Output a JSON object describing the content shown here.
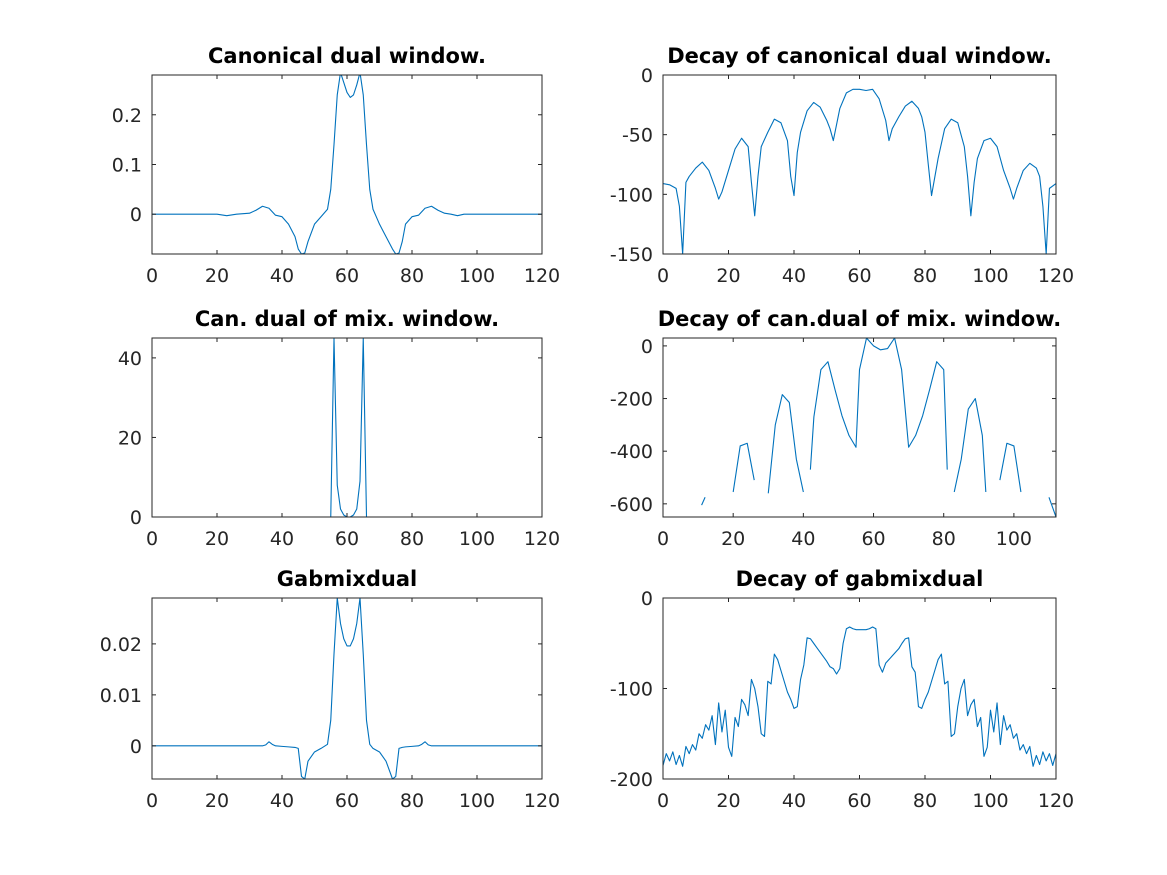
{
  "figure": {
    "background": "#ffffff",
    "line_color": "#0072bd",
    "axis_color": "#262626"
  },
  "chart_data": [
    {
      "type": "line",
      "title": "Canonical dual window.",
      "xlabel": "",
      "ylabel": "",
      "xlim": [
        0,
        120
      ],
      "ylim": [
        -0.08,
        0.28
      ],
      "xticks": [
        0,
        20,
        40,
        60,
        80,
        100,
        120
      ],
      "yticks": [
        0,
        0.1,
        0.2
      ],
      "ytick_labels": [
        "0",
        "0.1",
        "0.2"
      ],
      "grid": false,
      "series": [
        {
          "x": [
            0,
            5,
            10,
            15,
            20,
            23,
            26,
            30,
            32,
            34,
            36,
            38,
            40,
            42,
            44,
            45,
            46,
            47,
            48,
            50,
            52,
            54,
            55,
            56,
            57,
            58,
            59,
            60,
            61,
            62,
            63,
            64,
            65,
            66,
            67,
            68,
            69,
            70,
            72,
            74,
            75,
            76,
            77,
            78,
            80,
            82,
            84,
            86,
            88,
            90,
            92,
            94,
            96,
            98,
            100,
            105,
            110,
            115,
            120
          ],
          "y": [
            0,
            0,
            0,
            0,
            0,
            -0.003,
            0,
            0.002,
            0.008,
            0.016,
            0.012,
            -0.002,
            -0.005,
            -0.02,
            -0.045,
            -0.07,
            -0.08,
            -0.078,
            -0.055,
            -0.02,
            -0.005,
            0.01,
            0.05,
            0.14,
            0.24,
            0.285,
            0.265,
            0.245,
            0.235,
            0.24,
            0.26,
            0.285,
            0.24,
            0.14,
            0.05,
            0.01,
            -0.005,
            -0.02,
            -0.045,
            -0.07,
            -0.08,
            -0.078,
            -0.055,
            -0.02,
            -0.005,
            -0.002,
            0.012,
            0.016,
            0.008,
            0.002,
            0,
            -0.003,
            0,
            0,
            0,
            0,
            0,
            0,
            0
          ]
        }
      ]
    },
    {
      "type": "line",
      "title": "Decay of canonical dual window.",
      "xlabel": "",
      "ylabel": "",
      "xlim": [
        0,
        120
      ],
      "ylim": [
        -150,
        0
      ],
      "xticks": [
        0,
        20,
        40,
        60,
        80,
        100,
        120
      ],
      "yticks": [
        0,
        -50,
        -100,
        -150
      ],
      "ytick_labels": [
        "0",
        "-50",
        "-100",
        "-150"
      ],
      "grid": false,
      "series": [
        {
          "x": [
            0,
            2,
            4,
            5,
            6,
            7,
            8,
            10,
            12,
            14,
            16,
            17,
            18,
            20,
            22,
            24,
            26,
            27,
            28,
            29,
            30,
            32,
            34,
            36,
            38,
            39,
            40,
            41,
            42,
            44,
            46,
            48,
            50,
            51,
            52,
            54,
            56,
            58,
            60,
            62,
            64,
            66,
            68,
            69,
            70,
            72,
            74,
            76,
            78,
            79,
            80,
            81,
            82,
            84,
            86,
            88,
            90,
            92,
            93,
            94,
            95,
            96,
            98,
            100,
            102,
            104,
            106,
            107,
            108,
            110,
            112,
            114,
            115,
            116,
            117,
            118,
            120
          ],
          "y": [
            -91,
            -92,
            -95,
            -110,
            -150,
            -90,
            -85,
            -78,
            -73,
            -80,
            -95,
            -104,
            -98,
            -80,
            -62,
            -53,
            -60,
            -90,
            -118,
            -85,
            -60,
            -48,
            -37,
            -40,
            -55,
            -85,
            -101,
            -65,
            -48,
            -30,
            -23,
            -27,
            -38,
            -45,
            -55,
            -28,
            -15,
            -12,
            -12,
            -13,
            -12,
            -20,
            -38,
            -55,
            -45,
            -35,
            -26,
            -22,
            -28,
            -35,
            -48,
            -75,
            -101,
            -70,
            -45,
            -37,
            -40,
            -60,
            -85,
            -118,
            -90,
            -70,
            -55,
            -53,
            -60,
            -80,
            -95,
            -104,
            -95,
            -80,
            -74,
            -78,
            -85,
            -110,
            -150,
            -95,
            -91
          ]
        }
      ]
    },
    {
      "type": "line",
      "title": "Can. dual of mix. window.",
      "xlabel": "",
      "ylabel": "",
      "xlim": [
        0,
        120
      ],
      "ylim": [
        0,
        45
      ],
      "xticks": [
        0,
        20,
        40,
        60,
        80,
        100,
        120
      ],
      "yticks": [
        0,
        20,
        40
      ],
      "ytick_labels": [
        "0",
        "20",
        "40"
      ],
      "grid": false,
      "series": [
        {
          "x": [
            0,
            20,
            40,
            50,
            54,
            55,
            56,
            57,
            58,
            59,
            60,
            61,
            62,
            63,
            64,
            65,
            66,
            67,
            68,
            70,
            80,
            100,
            120
          ],
          "y": [
            0,
            0,
            0,
            0,
            0,
            0,
            45,
            8,
            2,
            0.5,
            0,
            0,
            0.5,
            2,
            9,
            45,
            0,
            0,
            0,
            0,
            0,
            0,
            0
          ]
        }
      ]
    },
    {
      "type": "line",
      "title": "Decay of can.dual of mix. window.",
      "xlabel": "",
      "ylabel": "",
      "xlim": [
        0,
        112
      ],
      "ylim": [
        -650,
        30
      ],
      "xticks": [
        0,
        20,
        40,
        60,
        80,
        100
      ],
      "yticks": [
        0,
        -200,
        -400,
        -600
      ],
      "ytick_labels": [
        "0",
        "-200",
        "-400",
        "-600"
      ],
      "grid": false,
      "series": [
        {
          "x": [
            11,
            12
          ],
          "y": [
            -605,
            -575
          ]
        },
        {
          "x": [
            20,
            22,
            24,
            26
          ],
          "y": [
            -555,
            -380,
            -370,
            -510
          ]
        },
        {
          "x": [
            30,
            32,
            34,
            36,
            38,
            40
          ],
          "y": [
            -560,
            -300,
            -185,
            -215,
            -430,
            -555
          ]
        },
        {
          "x": [
            42,
            43,
            45,
            47,
            49,
            51,
            53,
            55,
            56,
            58,
            60,
            62,
            64,
            66,
            68,
            70,
            72,
            74,
            76,
            78,
            80,
            81
          ],
          "y": [
            -470,
            -270,
            -90,
            -60,
            -165,
            -265,
            -340,
            -385,
            -90,
            30,
            0,
            -15,
            -10,
            30,
            -90,
            -385,
            -340,
            -265,
            -165,
            -60,
            -90,
            -470
          ]
        },
        {
          "x": [
            83,
            85,
            87,
            89,
            91,
            92
          ],
          "y": [
            -555,
            -430,
            -240,
            -200,
            -340,
            -555
          ]
        },
        {
          "x": [
            96,
            98,
            100,
            102
          ],
          "y": [
            -510,
            -370,
            -380,
            -555
          ]
        },
        {
          "x": [
            110,
            112
          ],
          "y": [
            -575,
            -650
          ]
        }
      ]
    },
    {
      "type": "line",
      "title": "Gabmixdual",
      "xlabel": "",
      "ylabel": "",
      "xlim": [
        0,
        120
      ],
      "ylim": [
        -0.0065,
        0.029
      ],
      "xticks": [
        0,
        20,
        40,
        60,
        80,
        100,
        120
      ],
      "yticks": [
        0,
        0.01,
        0.02
      ],
      "ytick_labels": [
        "0",
        "0.01",
        "0.02"
      ],
      "grid": false,
      "series": [
        {
          "x": [
            0,
            10,
            20,
            30,
            34,
            35,
            36,
            37,
            38,
            40,
            42,
            44,
            45,
            46,
            47,
            48,
            50,
            52,
            54,
            55,
            56,
            57,
            58,
            59,
            60,
            61,
            62,
            63,
            64,
            65,
            66,
            67,
            68,
            70,
            72,
            74,
            75,
            76,
            77,
            78,
            80,
            82,
            83,
            84,
            85,
            86,
            87,
            88,
            90,
            100,
            110,
            120
          ],
          "y": [
            0,
            0,
            0,
            0,
            0,
            0.0002,
            0.0008,
            0.0003,
            0,
            -0.0001,
            -0.0002,
            -0.0003,
            -0.0005,
            -0.006,
            -0.0065,
            -0.003,
            -0.0012,
            -0.0005,
            0.0003,
            0.005,
            0.018,
            0.029,
            0.024,
            0.021,
            0.0196,
            0.0196,
            0.021,
            0.024,
            0.029,
            0.018,
            0.005,
            0.0003,
            -0.0005,
            -0.0012,
            -0.003,
            -0.0065,
            -0.006,
            -0.0005,
            -0.0003,
            -0.0002,
            -0.0001,
            0,
            0.0003,
            0.0008,
            0.0002,
            0,
            0,
            0,
            0,
            0,
            0,
            0
          ]
        }
      ]
    },
    {
      "type": "line",
      "title": "Decay of gabmixdual",
      "xlabel": "",
      "ylabel": "",
      "xlim": [
        0,
        120
      ],
      "ylim": [
        -200,
        0
      ],
      "xticks": [
        0,
        20,
        40,
        60,
        80,
        100,
        120
      ],
      "yticks": [
        0,
        -100,
        -200
      ],
      "ytick_labels": [
        "0",
        "-100",
        "-200"
      ],
      "grid": false,
      "series": [
        {
          "x": [
            0,
            1,
            2,
            3,
            4,
            5,
            6,
            7,
            8,
            9,
            10,
            11,
            12,
            13,
            14,
            15,
            16,
            17,
            18,
            19,
            20,
            21,
            22,
            23,
            24,
            25,
            26,
            27,
            28,
            29,
            30,
            31,
            32,
            33,
            34,
            35,
            36,
            37,
            38,
            39,
            40,
            41,
            42,
            43,
            44,
            45,
            46,
            47,
            48,
            49,
            50,
            51,
            52,
            53,
            54,
            55,
            56,
            57,
            58,
            59,
            60,
            61,
            62,
            63,
            64,
            65,
            66,
            67,
            68,
            69,
            70,
            71,
            72,
            73,
            74,
            75,
            76,
            77,
            78,
            79,
            80,
            81,
            82,
            83,
            84,
            85,
            86,
            87,
            88,
            89,
            90,
            91,
            92,
            93,
            94,
            95,
            96,
            97,
            98,
            99,
            100,
            101,
            102,
            103,
            104,
            105,
            106,
            107,
            108,
            109,
            110,
            111,
            112,
            113,
            114,
            115,
            116,
            117,
            118,
            119,
            120
          ],
          "y": [
            -185,
            -172,
            -180,
            -170,
            -184,
            -174,
            -186,
            -164,
            -172,
            -162,
            -168,
            -150,
            -155,
            -140,
            -146,
            -130,
            -162,
            -116,
            -148,
            -124,
            -165,
            -175,
            -132,
            -142,
            -112,
            -118,
            -130,
            -90,
            -100,
            -120,
            -150,
            -153,
            -92,
            -95,
            -62,
            -68,
            -80,
            -92,
            -104,
            -112,
            -122,
            -120,
            -90,
            -74,
            -44,
            -45,
            -50,
            -55,
            -60,
            -65,
            -70,
            -76,
            -78,
            -84,
            -78,
            -50,
            -34,
            -32,
            -34,
            -35,
            -35,
            -35,
            -35,
            -34,
            -32,
            -34,
            -74,
            -82,
            -72,
            -68,
            -64,
            -60,
            -56,
            -50,
            -45,
            -44,
            -76,
            -82,
            -120,
            -122,
            -112,
            -104,
            -92,
            -80,
            -68,
            -62,
            -95,
            -92,
            -153,
            -150,
            -120,
            -100,
            -90,
            -130,
            -118,
            -112,
            -142,
            -132,
            -175,
            -165,
            -124,
            -148,
            -116,
            -162,
            -130,
            -146,
            -140,
            -155,
            -150,
            -168,
            -162,
            -172,
            -164,
            -186,
            -174,
            -184,
            -170,
            -180,
            -172,
            -185,
            -172
          ]
        }
      ]
    }
  ]
}
